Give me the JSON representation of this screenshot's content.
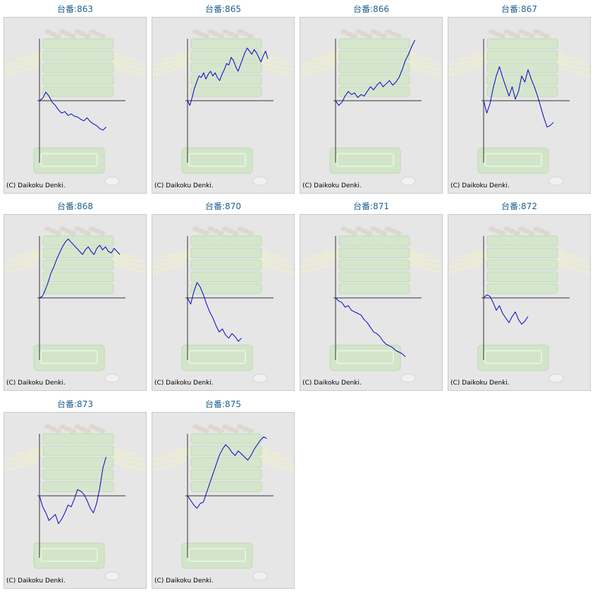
{
  "copyright": "(C) Daikoku Denki.",
  "colors": {
    "line": "#0000cc",
    "axis": "#333333",
    "title": "#1f5f8f",
    "panel_bg": "#e6e6e6"
  },
  "chart_data": [
    {
      "type": "line",
      "title": "台番:863",
      "y": [
        0,
        0.15,
        0.55,
        0.3,
        -0.1,
        -0.3,
        -0.6,
        -0.8,
        -0.7,
        -0.95,
        -0.85,
        -1.0,
        -1.05,
        -1.2,
        -1.3,
        -1.1,
        -1.35,
        -1.5,
        -1.6,
        -1.8,
        -1.9,
        -1.7
      ]
    },
    {
      "type": "line",
      "title": "台番:865",
      "y": [
        0,
        -0.3,
        0.2,
        0.8,
        1.2,
        1.6,
        1.5,
        1.8,
        1.4,
        1.7,
        1.9,
        1.6,
        1.8,
        1.5,
        1.3,
        1.7,
        2.0,
        2.4,
        2.3,
        2.8,
        2.6,
        2.2,
        1.9,
        2.3,
        2.7,
        3.1,
        3.4,
        3.2,
        3.0,
        3.3,
        3.1,
        2.8,
        2.5,
        2.9,
        3.2,
        2.7
      ]
    },
    {
      "type": "line",
      "title": "台番:866",
      "y": [
        0,
        -0.3,
        -0.1,
        0.3,
        0.6,
        0.4,
        0.5,
        0.2,
        0.4,
        0.3,
        0.6,
        0.9,
        0.7,
        1.0,
        1.2,
        0.9,
        1.1,
        1.3,
        1.0,
        1.2,
        1.5,
        2.0,
        2.6,
        3.0,
        3.5,
        4.0
      ]
    },
    {
      "type": "line",
      "title": "台番:867",
      "y": [
        0,
        -0.8,
        -0.2,
        0.8,
        1.6,
        2.2,
        1.5,
        0.9,
        0.3,
        0.9,
        0.1,
        0.6,
        1.6,
        1.2,
        2.0,
        1.4,
        0.9,
        0.3,
        -0.4,
        -1.1,
        -1.7,
        -1.6,
        -1.4
      ]
    },
    {
      "type": "line",
      "title": "台番:868",
      "y": [
        0,
        0.1,
        0.5,
        1.0,
        1.6,
        2.0,
        2.5,
        2.9,
        3.3,
        3.6,
        3.8,
        3.6,
        3.4,
        3.2,
        3.0,
        2.8,
        3.1,
        3.3,
        3.0,
        2.8,
        3.2,
        3.4,
        3.1,
        3.3,
        3.0,
        2.9,
        3.2,
        3.0,
        2.8
      ]
    },
    {
      "type": "line",
      "title": "台番:870",
      "y": [
        0,
        -0.4,
        0.4,
        1.0,
        0.7,
        0.2,
        -0.4,
        -0.9,
        -1.3,
        -1.8,
        -2.2,
        -2.0,
        -2.4,
        -2.6,
        -2.3,
        -2.5,
        -2.8,
        -2.6
      ]
    },
    {
      "type": "line",
      "title": "台番:871",
      "y": [
        0,
        -0.2,
        -0.3,
        -0.6,
        -0.5,
        -0.8,
        -0.9,
        -1.0,
        -1.1,
        -1.4,
        -1.6,
        -1.9,
        -2.2,
        -2.3,
        -2.5,
        -2.8,
        -3.0,
        -3.1,
        -3.2,
        -3.4,
        -3.5,
        -3.6,
        -3.8
      ]
    },
    {
      "type": "line",
      "title": "台番:872",
      "y": [
        0,
        0.2,
        0.1,
        -0.3,
        -0.8,
        -0.5,
        -1.0,
        -1.3,
        -1.6,
        -1.2,
        -0.9,
        -1.4,
        -1.7,
        -1.5,
        -1.2
      ]
    },
    {
      "type": "line",
      "title": "台番:873",
      "y": [
        0,
        -0.7,
        -1.1,
        -1.6,
        -1.4,
        -1.2,
        -1.8,
        -1.5,
        -1.1,
        -0.6,
        -0.7,
        -0.2,
        0.4,
        0.3,
        0.1,
        -0.3,
        -0.8,
        -1.1,
        -0.5,
        0.5,
        1.8,
        2.5
      ]
    },
    {
      "type": "line",
      "title": "台番:875",
      "y": [
        0,
        -0.3,
        -0.6,
        -0.8,
        -0.5,
        -0.4,
        0.2,
        0.8,
        1.4,
        2.0,
        2.6,
        3.0,
        3.3,
        3.1,
        2.8,
        2.6,
        2.9,
        2.7,
        2.5,
        2.3,
        2.6,
        3.0,
        3.3,
        3.6,
        3.8,
        3.7
      ]
    }
  ]
}
